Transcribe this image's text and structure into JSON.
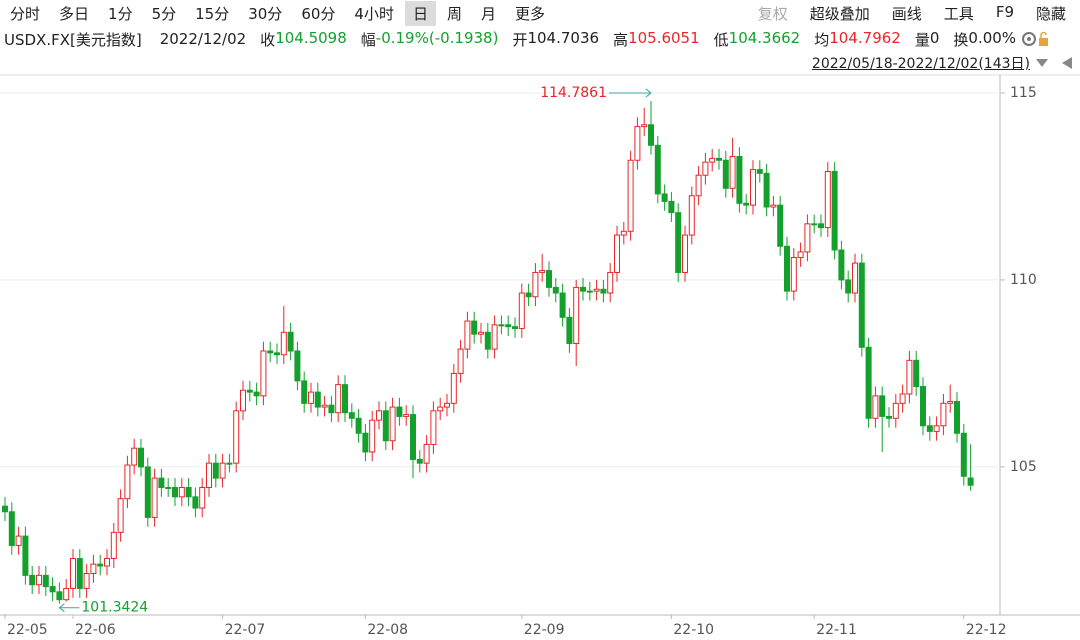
{
  "header": {
    "periods": [
      "分时",
      "多日",
      "1分",
      "5分",
      "15分",
      "30分",
      "60分",
      "4小时",
      "日",
      "周",
      "月",
      "更多"
    ],
    "active_period": "日",
    "tools": [
      "复权",
      "超级叠加",
      "画线",
      "工具",
      "F9",
      "隐藏"
    ],
    "disabled_tool": "复权",
    "symbol": "USDX.FX[美元指数]",
    "date": "2022/12/02",
    "quote": [
      {
        "label": "收",
        "value": "104.5098",
        "color": "#14a02d"
      },
      {
        "label": "幅",
        "value": "-0.19%(-0.1938)",
        "color": "#14a02d"
      },
      {
        "label": "开",
        "value": "104.7036",
        "color": "#222222"
      },
      {
        "label": "高",
        "value": "105.6051",
        "color": "#e8262a"
      },
      {
        "label": "低",
        "value": "104.3662",
        "color": "#14a02d"
      },
      {
        "label": "均",
        "value": "104.7962",
        "color": "#e8262a"
      },
      {
        "label": "量",
        "value": "0",
        "color": "#222222"
      },
      {
        "label": "换",
        "value": "0.00%",
        "color": "#222222"
      }
    ],
    "range": "2022/05/18-2022/12/02(143日)"
  },
  "chart_data": {
    "type": "candlestick",
    "up_color": "#e8262a",
    "down_color": "#14a02d",
    "grid": true,
    "ylim": [
      101.04,
      115.48
    ],
    "yticks": [
      105,
      110,
      115
    ],
    "categories": [
      "22-05",
      null,
      null,
      null,
      null,
      null,
      null,
      null,
      null,
      null,
      "22-06",
      null,
      null,
      null,
      null,
      null,
      null,
      null,
      null,
      null,
      null,
      null,
      null,
      null,
      null,
      null,
      null,
      null,
      null,
      null,
      null,
      null,
      "22-07",
      null,
      null,
      null,
      null,
      null,
      null,
      null,
      null,
      null,
      null,
      null,
      null,
      null,
      null,
      null,
      null,
      null,
      null,
      null,
      null,
      "22-08",
      null,
      null,
      null,
      null,
      null,
      null,
      null,
      null,
      null,
      null,
      null,
      null,
      null,
      null,
      null,
      null,
      null,
      null,
      null,
      null,
      null,
      null,
      "22-09",
      null,
      null,
      null,
      null,
      null,
      null,
      null,
      null,
      null,
      null,
      null,
      null,
      null,
      null,
      null,
      null,
      null,
      null,
      null,
      null,
      null,
      "22-10",
      null,
      null,
      null,
      null,
      null,
      null,
      null,
      null,
      null,
      null,
      null,
      null,
      null,
      null,
      null,
      null,
      null,
      null,
      null,
      null,
      "22-11",
      null,
      null,
      null,
      null,
      null,
      null,
      null,
      null,
      null,
      null,
      null,
      null,
      null,
      null,
      null,
      null,
      null,
      null,
      null,
      null,
      null,
      "22-12",
      null
    ],
    "open": [
      103.95,
      103.8,
      102.9,
      103.15,
      102.1,
      101.85,
      102.1,
      101.8,
      101.66,
      101.45,
      101.75,
      102.55,
      101.75,
      102.15,
      102.4,
      102.35,
      102.55,
      103.25,
      104.15,
      105.05,
      105.5,
      105.0,
      103.65,
      104.7,
      104.45,
      104.45,
      104.2,
      104.45,
      104.2,
      103.9,
      104.45,
      105.1,
      104.7,
      105.1,
      105.1,
      106.5,
      107.05,
      107.0,
      106.9,
      108.1,
      108.05,
      108.0,
      108.6,
      108.1,
      107.3,
      106.7,
      107.0,
      106.6,
      106.65,
      106.45,
      107.2,
      106.45,
      106.3,
      105.9,
      105.4,
      106.25,
      106.5,
      105.7,
      106.6,
      106.35,
      106.4,
      105.2,
      105.1,
      105.6,
      106.5,
      106.6,
      106.7,
      107.5,
      108.15,
      108.9,
      108.55,
      108.6,
      108.15,
      108.8,
      108.8,
      108.75,
      108.7,
      109.65,
      109.55,
      110.2,
      110.25,
      109.8,
      109.65,
      109.0,
      108.3,
      109.8,
      109.7,
      109.7,
      109.75,
      109.65,
      110.2,
      111.2,
      111.3,
      113.2,
      114.1,
      114.15,
      113.6,
      112.3,
      112.1,
      111.8,
      110.2,
      111.2,
      112.25,
      112.8,
      113.15,
      113.25,
      113.2,
      112.45,
      113.3,
      112.05,
      112.0,
      112.95,
      112.85,
      111.95,
      112.0,
      110.9,
      109.7,
      110.6,
      110.75,
      111.5,
      111.5,
      111.4,
      112.9,
      110.8,
      110.0,
      109.65,
      110.45,
      108.2,
      106.3,
      106.9,
      106.35,
      106.3,
      106.7,
      106.95,
      107.85,
      107.15,
      106.1,
      105.95,
      106.1,
      106.7,
      106.75,
      105.9,
      104.7036
    ],
    "high": [
      104.2,
      104.05,
      103.4,
      103.4,
      102.35,
      102.35,
      102.35,
      102.05,
      101.91,
      102.0,
      102.8,
      102.8,
      102.4,
      102.65,
      102.65,
      102.8,
      103.5,
      104.4,
      105.3,
      105.75,
      105.75,
      105.25,
      104.95,
      104.95,
      104.7,
      104.7,
      104.7,
      104.7,
      104.45,
      104.7,
      105.35,
      105.35,
      105.35,
      105.35,
      106.75,
      107.3,
      107.3,
      107.25,
      108.35,
      108.35,
      108.3,
      109.3,
      108.85,
      108.35,
      107.55,
      107.25,
      107.25,
      106.9,
      106.9,
      107.45,
      107.45,
      106.7,
      106.55,
      106.15,
      106.5,
      106.75,
      106.75,
      106.85,
      106.85,
      106.65,
      106.65,
      105.45,
      105.85,
      106.75,
      106.85,
      106.95,
      107.75,
      108.4,
      109.15,
      109.15,
      108.85,
      108.85,
      109.05,
      109.05,
      109.05,
      109.0,
      109.9,
      109.9,
      110.45,
      110.7,
      110.5,
      110.05,
      109.9,
      109.25,
      110.0,
      110.05,
      109.95,
      110.0,
      110.0,
      110.45,
      111.45,
      111.55,
      113.45,
      114.35,
      114.6,
      114.7861,
      113.85,
      112.55,
      112.35,
      112.05,
      111.45,
      112.5,
      113.05,
      113.4,
      113.5,
      113.5,
      113.45,
      113.8,
      113.55,
      112.3,
      113.2,
      113.2,
      113.1,
      112.25,
      112.25,
      111.15,
      110.85,
      111.0,
      111.75,
      111.75,
      111.75,
      113.15,
      113.15,
      111.05,
      110.25,
      110.7,
      110.7,
      108.45,
      107.15,
      107.15,
      106.6,
      106.95,
      107.2,
      108.1,
      108.1,
      107.4,
      106.35,
      106.35,
      106.95,
      107.2,
      107.0,
      106.15,
      105.6051
    ],
    "low": [
      103.55,
      102.65,
      102.65,
      101.85,
      101.6,
      101.6,
      101.55,
      101.41,
      101.3424,
      101.4,
      101.5,
      101.5,
      101.5,
      101.9,
      102.1,
      102.1,
      102.3,
      103.0,
      103.9,
      104.8,
      104.75,
      103.4,
      103.4,
      104.2,
      104.2,
      103.95,
      103.95,
      103.95,
      103.65,
      103.65,
      104.2,
      104.45,
      104.45,
      104.85,
      104.85,
      106.25,
      106.75,
      106.65,
      106.65,
      107.8,
      107.75,
      107.75,
      107.85,
      107.05,
      106.45,
      106.45,
      106.35,
      106.35,
      106.2,
      106.2,
      106.2,
      106.05,
      105.65,
      105.15,
      105.15,
      106.0,
      105.45,
      105.45,
      106.1,
      106.1,
      104.7,
      104.85,
      104.85,
      105.35,
      106.25,
      106.35,
      106.45,
      107.25,
      107.9,
      108.3,
      108.3,
      107.9,
      107.9,
      108.55,
      108.5,
      108.45,
      108.45,
      109.3,
      109.3,
      109.95,
      109.55,
      109.4,
      108.75,
      108.05,
      107.7,
      109.45,
      109.45,
      109.45,
      109.4,
      109.4,
      109.95,
      110.95,
      111.05,
      112.95,
      113.85,
      113.35,
      112.05,
      111.85,
      111.55,
      109.95,
      109.95,
      110.95,
      112.0,
      112.55,
      112.9,
      112.95,
      112.2,
      112.2,
      111.8,
      111.75,
      111.75,
      112.6,
      111.7,
      111.7,
      110.65,
      109.45,
      109.45,
      110.35,
      110.5,
      111.25,
      111.15,
      111.15,
      110.55,
      109.75,
      109.4,
      109.4,
      107.95,
      106.05,
      106.05,
      105.4,
      106.05,
      106.05,
      106.45,
      106.7,
      106.9,
      105.85,
      105.7,
      105.7,
      105.85,
      106.45,
      105.65,
      104.5,
      104.3662
    ],
    "close": [
      103.8,
      102.9,
      103.15,
      102.1,
      101.85,
      102.1,
      101.8,
      101.66,
      101.45,
      101.75,
      102.55,
      101.75,
      102.15,
      102.4,
      102.35,
      102.55,
      103.25,
      104.15,
      105.05,
      105.5,
      105.0,
      103.65,
      104.7,
      104.45,
      104.45,
      104.2,
      104.45,
      104.2,
      103.9,
      104.45,
      105.1,
      104.7,
      105.1,
      105.1,
      106.5,
      107.05,
      107.0,
      106.9,
      108.1,
      108.05,
      108.0,
      108.6,
      108.1,
      107.3,
      106.7,
      107.0,
      106.6,
      106.65,
      106.45,
      107.2,
      106.45,
      106.3,
      105.9,
      105.4,
      106.25,
      106.5,
      105.7,
      106.6,
      106.35,
      106.4,
      105.2,
      105.1,
      105.6,
      106.5,
      106.6,
      106.7,
      107.5,
      108.15,
      108.9,
      108.55,
      108.6,
      108.15,
      108.8,
      108.8,
      108.75,
      108.7,
      109.65,
      109.55,
      110.2,
      110.25,
      109.8,
      109.65,
      109.0,
      108.3,
      109.8,
      109.7,
      109.7,
      109.75,
      109.65,
      110.2,
      111.2,
      111.3,
      113.2,
      114.1,
      114.15,
      113.6,
      112.3,
      112.1,
      111.8,
      110.2,
      111.2,
      112.25,
      112.8,
      113.15,
      113.25,
      113.2,
      112.45,
      113.3,
      112.05,
      112.0,
      112.95,
      112.85,
      111.95,
      112.0,
      110.9,
      109.7,
      110.6,
      110.75,
      111.5,
      111.5,
      111.4,
      112.9,
      110.8,
      110.0,
      109.65,
      110.45,
      108.2,
      106.3,
      106.9,
      106.35,
      106.3,
      106.7,
      106.95,
      107.85,
      107.15,
      106.1,
      105.95,
      106.1,
      106.7,
      106.75,
      105.9,
      104.75,
      104.5098
    ]
  }
}
